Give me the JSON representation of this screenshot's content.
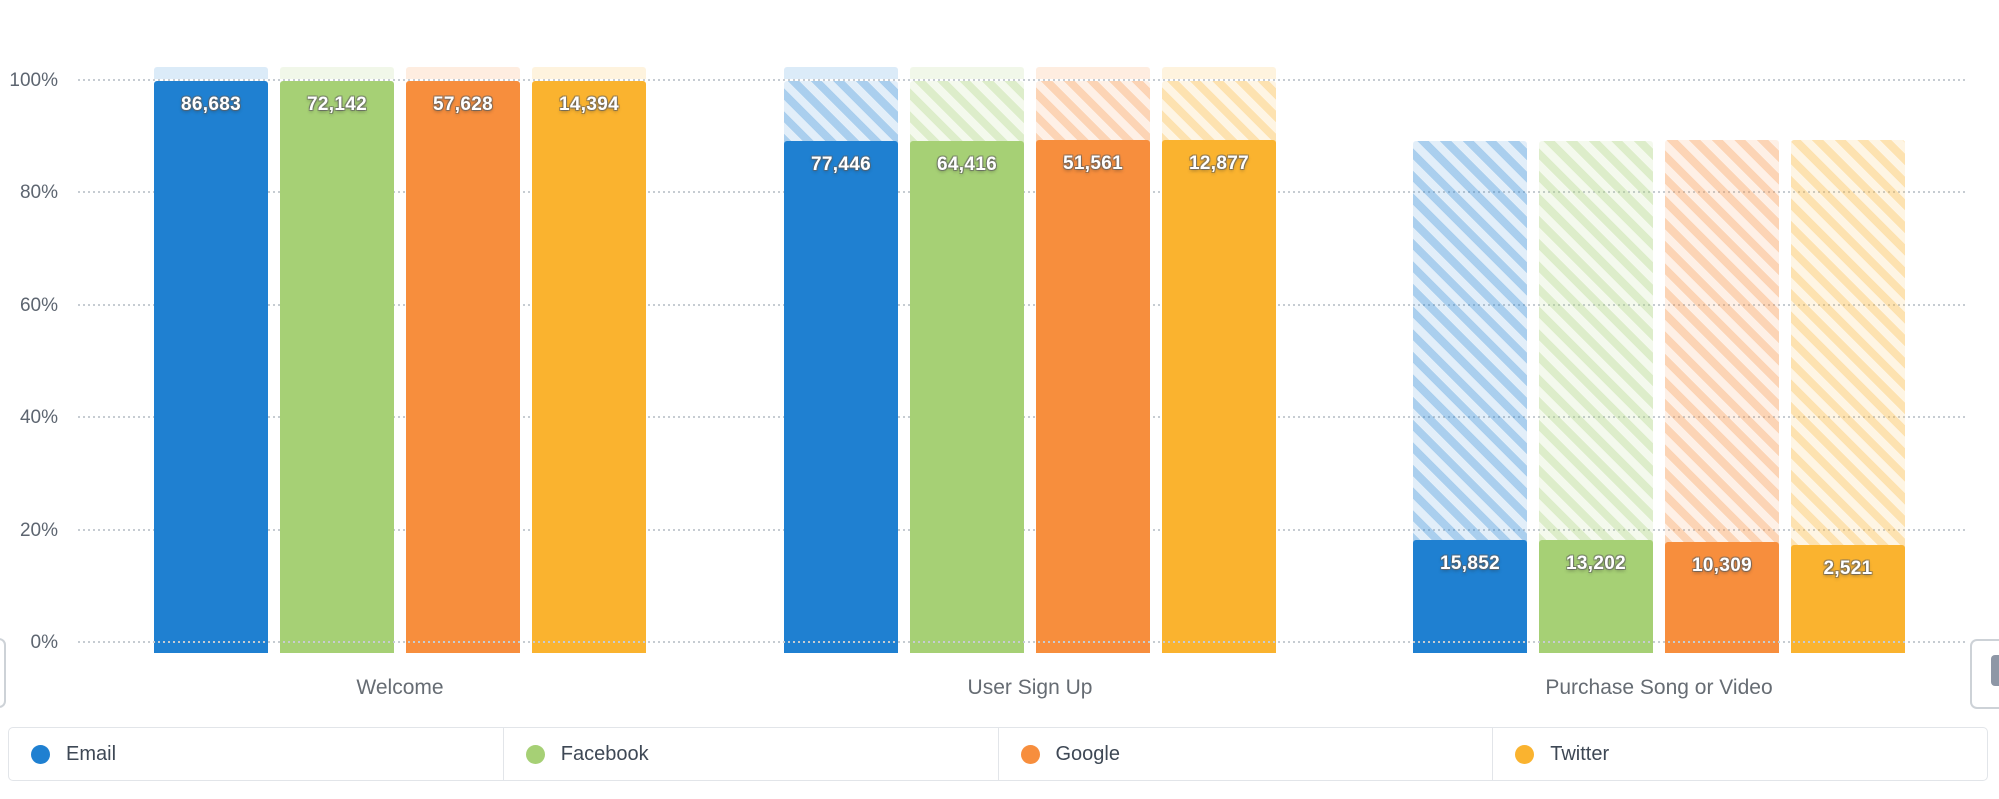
{
  "chart_data": {
    "type": "bar",
    "subtype": "funnel-grouped-by-breakdown",
    "steps": [
      "Welcome",
      "User Sign Up",
      "Purchase Song or Video"
    ],
    "series": [
      {
        "name": "Email",
        "color": "#1f80d1",
        "values": [
          86683,
          77446,
          15852
        ]
      },
      {
        "name": "Facebook",
        "color": "#a6d075",
        "values": [
          72142,
          64416,
          13202
        ]
      },
      {
        "name": "Google",
        "color": "#f78e3d",
        "values": [
          57628,
          51561,
          10309
        ]
      },
      {
        "name": "Twitter",
        "color": "#fab32f",
        "values": [
          14394,
          12877,
          2521
        ]
      }
    ],
    "value_labels": [
      [
        "86,683",
        "77,446",
        "15,852"
      ],
      [
        "72,142",
        "64,416",
        "13,202"
      ],
      [
        "57,628",
        "51,561",
        "10,309"
      ],
      [
        "14,394",
        "12,877",
        "2,521"
      ]
    ],
    "y_axis": {
      "ticks": [
        "100%",
        "80%",
        "60%",
        "40%",
        "20%",
        "0%"
      ],
      "range_percent": [
        0,
        100
      ],
      "gridlines": "dotted"
    },
    "legend": {
      "position": "bottom",
      "items": [
        "Email",
        "Facebook",
        "Google",
        "Twitter"
      ]
    },
    "notes": "Hatched section of each bar spans from previous step conversion level down to current step level; values are absolute counts, bar heights are percent of first step."
  },
  "colors": {
    "background": "#ffffff",
    "grid": "#c6ccd2",
    "axis_text": "#5d6570",
    "step_label_text": "#666c73",
    "legend_text": "#3e4855",
    "legend_border": "#e2e5e9",
    "edge_box_border": "#cdd2d7",
    "edge_box_glyph": "#8e97a6",
    "value_text": "#ffffff"
  }
}
